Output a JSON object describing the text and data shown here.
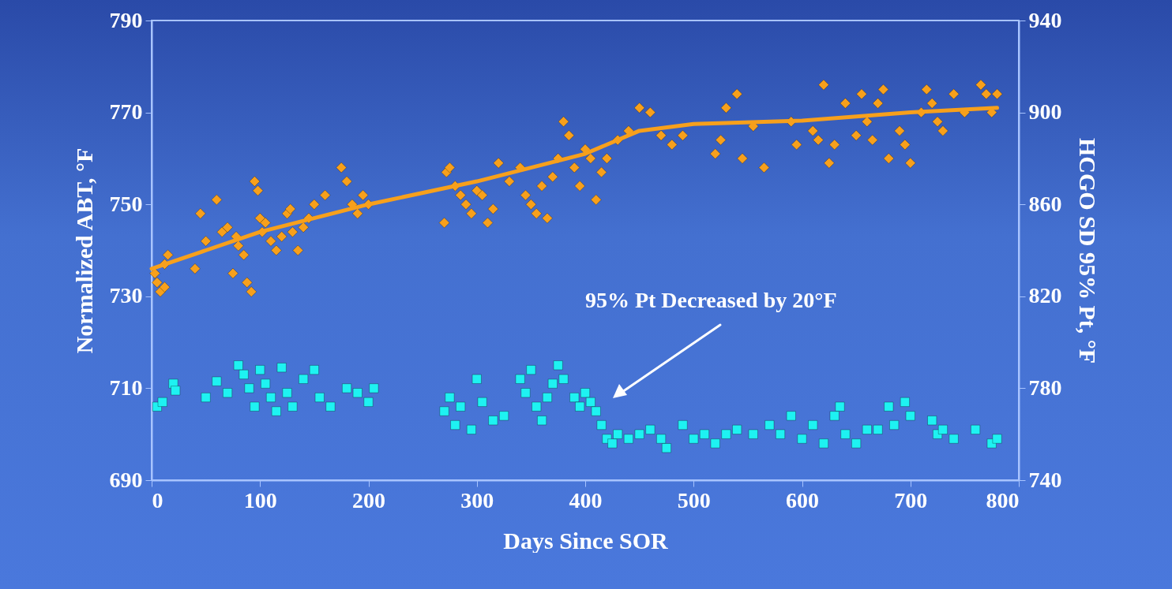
{
  "chart_data": {
    "type": "scatter",
    "xlabel": "Days Since SOR",
    "ylabel": "Normalized ABT, °F",
    "y2label": "HCGO SD 95% Pt, °F",
    "xlim": [
      0,
      800
    ],
    "xticks": [
      0,
      100,
      200,
      300,
      400,
      500,
      600,
      700,
      800
    ],
    "ylim": [
      690,
      790
    ],
    "yticks": [
      690,
      710,
      730,
      750,
      770,
      790
    ],
    "y2lim": [
      740,
      940
    ],
    "y2ticks": [
      740,
      780,
      820,
      860,
      900,
      940
    ],
    "grid": false,
    "annotations": [
      "95% Pt Decreased by 20°F"
    ],
    "series": [
      {
        "color": "#f7a01c",
        "marker": "diamond",
        "x": [
          3,
          5,
          8,
          12,
          15,
          12,
          40,
          45,
          50,
          60,
          65,
          70,
          75,
          78,
          80,
          85,
          88,
          92,
          95,
          98,
          100,
          102,
          105,
          110,
          115,
          120,
          125,
          128,
          130,
          135,
          140,
          145,
          150,
          160,
          175,
          180,
          185,
          190,
          195,
          200,
          270,
          272,
          275,
          280,
          285,
          290,
          295,
          300,
          305,
          310,
          315,
          320,
          330,
          340,
          345,
          350,
          355,
          360,
          365,
          370,
          375,
          380,
          385,
          390,
          395,
          400,
          405,
          410,
          415,
          420,
          430,
          440,
          450,
          460,
          470,
          480,
          490,
          520,
          525,
          530,
          540,
          545,
          555,
          565,
          590,
          595,
          610,
          615,
          620,
          625,
          630,
          640,
          650,
          655,
          660,
          665,
          670,
          675,
          680,
          690,
          695,
          700,
          710,
          715,
          720,
          725,
          730,
          740,
          750,
          765,
          770,
          775,
          780
        ],
        "values": [
          735,
          733,
          731,
          732,
          739,
          737,
          736,
          748,
          742,
          751,
          744,
          745,
          735,
          743,
          741,
          739,
          733,
          731,
          755,
          753,
          747,
          744,
          746,
          742,
          740,
          743,
          748,
          749,
          744,
          740,
          745,
          747,
          750,
          752,
          758,
          755,
          750,
          748,
          752,
          750,
          746,
          757,
          758,
          754,
          752,
          750,
          748,
          753,
          752,
          746,
          749,
          759,
          755,
          758,
          752,
          750,
          748,
          754,
          747,
          756,
          760,
          768,
          765,
          758,
          754,
          762,
          760,
          751,
          757,
          760,
          764,
          766,
          771,
          770,
          765,
          763,
          765,
          761,
          764,
          771,
          774,
          760,
          767,
          758,
          768,
          763,
          766,
          764,
          776,
          759,
          763,
          772,
          765,
          774,
          768,
          764,
          772,
          775,
          760,
          766,
          763,
          759,
          770,
          775,
          772,
          768,
          766,
          774,
          770,
          776,
          774,
          770,
          774
        ]
      },
      {
        "type": "line",
        "color": "#f7a01c",
        "marker": "none",
        "x": [
          0,
          50,
          100,
          200,
          300,
          400,
          450,
          500,
          600,
          700,
          780
        ],
        "values": [
          736,
          740,
          744,
          750,
          755,
          761,
          766,
          767.5,
          768.2,
          770,
          771
        ]
      },
      {
        "axis": "y2",
        "color": "#1ef2f2",
        "marker": "square",
        "x": [
          5,
          10,
          20,
          22,
          50,
          60,
          70,
          80,
          85,
          90,
          95,
          100,
          105,
          110,
          115,
          120,
          125,
          130,
          140,
          150,
          155,
          165,
          180,
          190,
          200,
          205,
          270,
          275,
          280,
          285,
          295,
          300,
          305,
          315,
          325,
          340,
          345,
          350,
          355,
          360,
          365,
          370,
          375,
          380,
          390,
          395,
          400,
          405,
          410,
          415,
          420,
          425,
          430,
          440,
          450,
          460,
          470,
          475,
          490,
          500,
          510,
          520,
          530,
          540,
          555,
          570,
          580,
          590,
          600,
          610,
          620,
          630,
          635,
          640,
          650,
          660,
          670,
          680,
          685,
          695,
          700,
          720,
          725,
          730,
          740,
          760,
          775,
          780
        ],
        "values": [
          772,
          774,
          782,
          779,
          776,
          783,
          778,
          790,
          786,
          780,
          772,
          788,
          782,
          776,
          770,
          789,
          778,
          772,
          784,
          788,
          776,
          772,
          780,
          778,
          774,
          780,
          770,
          776,
          764,
          772,
          762,
          784,
          774,
          766,
          768,
          784,
          778,
          788,
          772,
          766,
          776,
          782,
          790,
          784,
          776,
          772,
          778,
          774,
          770,
          764,
          758,
          756,
          760,
          758,
          760,
          762,
          758,
          754,
          764,
          758,
          760,
          756,
          760,
          762,
          760,
          764,
          760,
          768,
          758,
          764,
          756,
          768,
          772,
          760,
          756,
          762,
          762,
          772,
          764,
          774,
          768,
          766,
          760,
          762,
          758,
          762,
          756,
          758
        ]
      }
    ]
  }
}
